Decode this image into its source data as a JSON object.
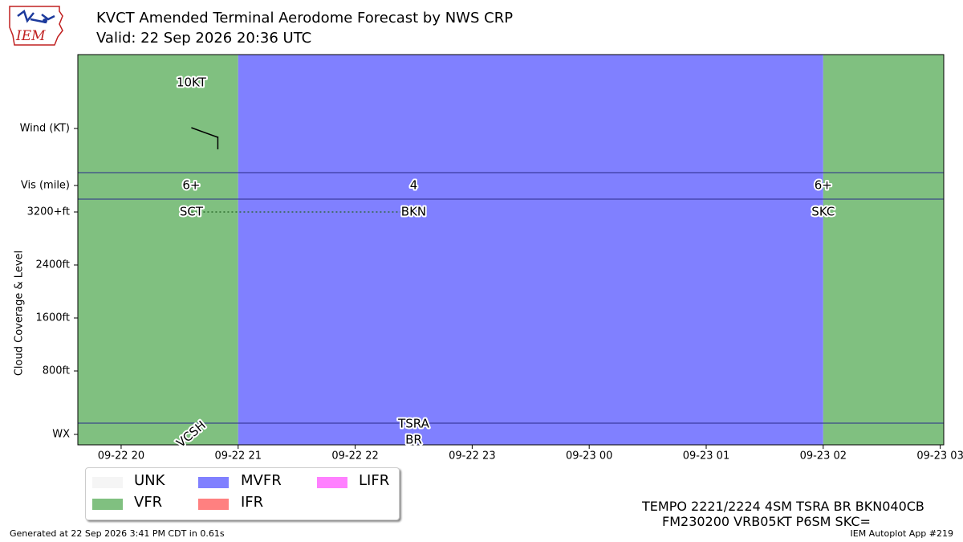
{
  "header": {
    "title_line1": "KVCT Amended Terminal Aerodome Forecast by NWS CRP",
    "title_line2": "Valid: 22 Sep 2026 20:36 UTC",
    "logo_text": "IEM"
  },
  "chart_data": {
    "type": "timeline",
    "ylabel": "Cloud Coverage & Level",
    "row_labels": {
      "wind": "Wind (KT)",
      "vis": "Vis (mile)",
      "wx": "WX"
    },
    "cloud_ticks": [
      "3200+ft",
      "2400ft",
      "1600ft",
      "800ft"
    ],
    "x_ticks": [
      "09-22 20",
      "09-22 21",
      "09-22 22",
      "09-22 23",
      "09-23 00",
      "09-23 01",
      "09-23 02",
      "09-23 03"
    ],
    "x_range_hours": [
      -0.37,
      7.03
    ],
    "periods": [
      {
        "start": -0.37,
        "end": 1.0,
        "category": "VFR"
      },
      {
        "start": 1.0,
        "end": 6.0,
        "category": "MVFR"
      },
      {
        "start": 6.0,
        "end": 7.03,
        "category": "VFR"
      }
    ],
    "wind": [
      {
        "time": 0.6,
        "label": "10KT"
      }
    ],
    "visibility": [
      {
        "time": 0.6,
        "label": "6+"
      },
      {
        "time": 2.5,
        "label": "4"
      },
      {
        "time": 6.0,
        "label": "6+"
      }
    ],
    "clouds": [
      {
        "time": 0.6,
        "label": "SCT"
      },
      {
        "time": 2.5,
        "label": "BKN"
      },
      {
        "time": 6.0,
        "label": "SKC"
      }
    ],
    "weather": [
      {
        "time": 0.6,
        "label": "VCSH",
        "rotated": true
      },
      {
        "time": 2.5,
        "label": "TSRA\nBR",
        "rotated": false
      }
    ],
    "colors": {
      "UNK": "#f5f5f5",
      "VFR": "#80c080",
      "MVFR": "#8080ff",
      "IFR": "#ff8080",
      "LIFR": "#ff80ff"
    }
  },
  "legend": {
    "items": [
      {
        "label": "UNK",
        "color": "#f5f5f5"
      },
      {
        "label": "MVFR",
        "color": "#8080ff"
      },
      {
        "label": "LIFR",
        "color": "#ff80ff"
      },
      {
        "label": "VFR",
        "color": "#80c080"
      },
      {
        "label": "IFR",
        "color": "#ff8080"
      }
    ]
  },
  "taf_text": {
    "line1": "TEMPO 2221/2224 4SM TSRA BR BKN040CB",
    "line2": "FM230200 VRB05KT P6SM SKC="
  },
  "footer": {
    "generated": "Generated at 22 Sep 2026 3:41 PM CDT in 0.61s",
    "app": "IEM Autoplot App #219"
  }
}
